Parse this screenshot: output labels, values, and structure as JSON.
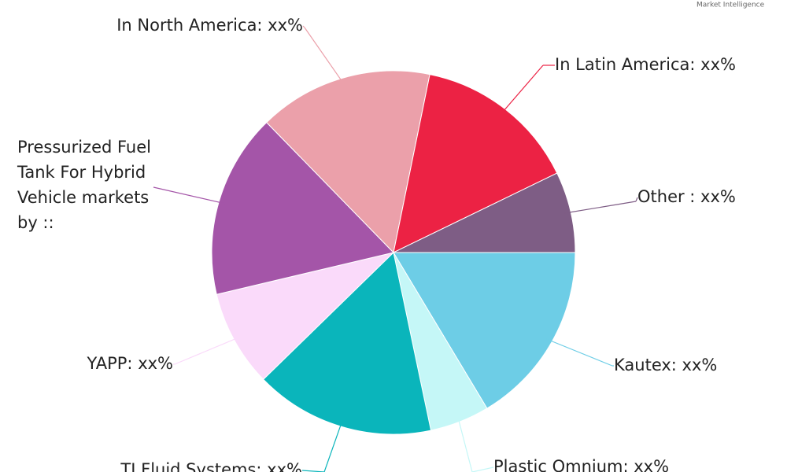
{
  "chart_data": {
    "type": "pie",
    "categories": [
      "Kautex: xx%",
      "Plastic Omnium: xx%",
      "TI Fluid Systems: xx%",
      "YAPP: xx%",
      "Pressurized Fuel Tank For Hybrid Vehicle markets by ::",
      "In North America: xx%",
      "In Latin America: xx%",
      "Other : xx%"
    ],
    "values": [
      16.4,
      5.3,
      16,
      8.6,
      16.4,
      15.5,
      14.6,
      7.2
    ],
    "colors": [
      "#6dcde6",
      "#c5f7f7",
      "#0ab5bb",
      "#fadafa",
      "#a455a8",
      "#eba0aa",
      "#ec2244",
      "#7e5d85"
    ]
  },
  "logo_text": "Market Intelligence"
}
